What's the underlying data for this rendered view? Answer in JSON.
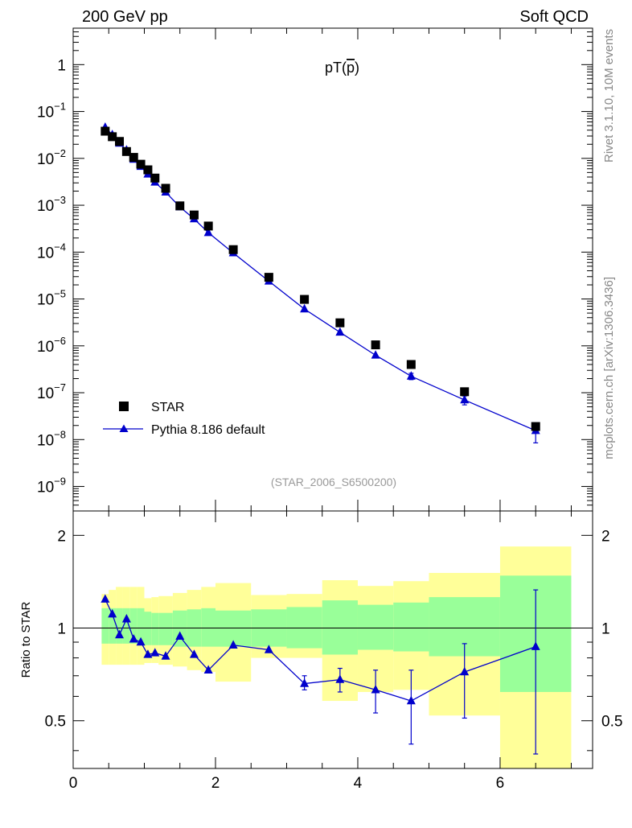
{
  "header": {
    "left_title": "200 GeV pp",
    "right_title": "Soft QCD"
  },
  "side_text": {
    "rivet": "Rivet 3.1.10,  10M events",
    "mcplots": "mcplots.cern.ch [arXiv:1306.3436]"
  },
  "colors": {
    "data": "#000000",
    "mc": "#0000cc",
    "band_inner": "#99ff99",
    "band_outer": "#ffff99",
    "analysis_label": "#999999"
  },
  "chart_data": [
    {
      "type": "scatter",
      "panel": "main",
      "title": "pT(p̄)",
      "title_base": "pT(",
      "title_sym": "p",
      "title_close": ")",
      "analysis_label": "(STAR_2006_S6500200)",
      "yscale": "log",
      "xlim": [
        0,
        7.3
      ],
      "ylim": [
        3e-10,
        6
      ],
      "ytick_labels": [
        {
          "value": 1,
          "mant": "1",
          "exp": ""
        },
        {
          "value": 0.1,
          "mant": "10",
          "exp": "−1"
        },
        {
          "value": 0.01,
          "mant": "10",
          "exp": "−2"
        },
        {
          "value": 0.001,
          "mant": "10",
          "exp": "−3"
        },
        {
          "value": 0.0001,
          "mant": "10",
          "exp": "−4"
        },
        {
          "value": 1e-05,
          "mant": "10",
          "exp": "−5"
        },
        {
          "value": 1e-06,
          "mant": "10",
          "exp": "−6"
        },
        {
          "value": 1e-07,
          "mant": "10",
          "exp": "−7"
        },
        {
          "value": 1e-08,
          "mant": "10",
          "exp": "−8"
        },
        {
          "value": 1e-09,
          "mant": "10",
          "exp": "−9"
        }
      ],
      "legend": {
        "placement": "bottom-left",
        "entries": [
          "STAR",
          "Pythia 8.186 default"
        ]
      },
      "series": [
        {
          "name": "STAR",
          "marker": "square",
          "x": [
            0.45,
            0.55,
            0.65,
            0.75,
            0.85,
            0.95,
            1.05,
            1.15,
            1.3,
            1.5,
            1.7,
            1.9,
            2.25,
            2.75,
            3.25,
            3.75,
            4.25,
            4.75,
            5.5,
            6.5
          ],
          "y": [
            0.038,
            0.029,
            0.023,
            0.014,
            0.0105,
            0.0075,
            0.0057,
            0.0038,
            0.0023,
            0.00097,
            0.00062,
            0.00036,
            0.000113,
            2.9e-05,
            9.8e-06,
            3.1e-06,
            1.05e-06,
            4e-07,
            1.05e-07,
            1.9e-08
          ]
        },
        {
          "name": "Pythia 8.186 default",
          "marker": "triangle",
          "x": [
            0.45,
            0.55,
            0.65,
            0.75,
            0.85,
            0.95,
            1.05,
            1.15,
            1.3,
            1.5,
            1.7,
            1.9,
            2.25,
            2.75,
            3.25,
            3.75,
            4.25,
            4.75,
            5.5,
            6.5
          ],
          "y": [
            0.046,
            0.032,
            0.021,
            0.015,
            0.0095,
            0.0067,
            0.0046,
            0.0031,
            0.0019,
            0.00092,
            0.00051,
            0.00026,
            9.6e-05,
            2.4e-05,
            6.1e-06,
            1.95e-06,
            6.3e-07,
            2.25e-07,
            7e-08,
            1.55e-08
          ],
          "yerr": [
            0,
            0,
            0,
            0,
            0,
            0,
            0,
            0,
            0,
            0,
            0,
            0,
            0,
            0,
            0,
            0,
            0,
            3.5e-08,
            1.5e-08,
            7e-09
          ]
        }
      ]
    },
    {
      "type": "scatter",
      "panel": "ratio",
      "ylabel": "Ratio to STAR",
      "xlim": [
        0,
        7.3
      ],
      "ylim": [
        0.35,
        2.4
      ],
      "xticks": [
        0,
        2,
        4,
        6
      ],
      "xtick_labels": [
        "0",
        "2",
        "4",
        "6"
      ],
      "yticks": [
        0.5,
        1,
        2
      ],
      "ytick_labels": [
        "0.5",
        "1",
        "2"
      ],
      "bands": [
        {
          "x0": 0.4,
          "x1": 0.5,
          "inner": [
            0.89,
            1.16
          ],
          "outer": [
            0.76,
            1.29
          ]
        },
        {
          "x0": 0.5,
          "x1": 0.6,
          "inner": [
            0.89,
            1.16
          ],
          "outer": [
            0.76,
            1.33
          ]
        },
        {
          "x0": 0.6,
          "x1": 0.7,
          "inner": [
            0.89,
            1.16
          ],
          "outer": [
            0.76,
            1.36
          ]
        },
        {
          "x0": 0.7,
          "x1": 0.8,
          "inner": [
            0.89,
            1.16
          ],
          "outer": [
            0.76,
            1.36
          ]
        },
        {
          "x0": 0.8,
          "x1": 0.9,
          "inner": [
            0.89,
            1.16
          ],
          "outer": [
            0.76,
            1.36
          ]
        },
        {
          "x0": 0.9,
          "x1": 1.0,
          "inner": [
            0.89,
            1.16
          ],
          "outer": [
            0.76,
            1.36
          ]
        },
        {
          "x0": 1.0,
          "x1": 1.1,
          "inner": [
            0.88,
            1.13
          ],
          "outer": [
            0.77,
            1.25
          ]
        },
        {
          "x0": 1.1,
          "x1": 1.2,
          "inner": [
            0.88,
            1.12
          ],
          "outer": [
            0.77,
            1.26
          ]
        },
        {
          "x0": 1.2,
          "x1": 1.4,
          "inner": [
            0.88,
            1.12
          ],
          "outer": [
            0.76,
            1.27
          ]
        },
        {
          "x0": 1.4,
          "x1": 1.6,
          "inner": [
            0.87,
            1.14
          ],
          "outer": [
            0.75,
            1.3
          ]
        },
        {
          "x0": 1.6,
          "x1": 1.8,
          "inner": [
            0.87,
            1.15
          ],
          "outer": [
            0.73,
            1.33
          ]
        },
        {
          "x0": 1.8,
          "x1": 2.0,
          "inner": [
            0.87,
            1.16
          ],
          "outer": [
            0.72,
            1.36
          ]
        },
        {
          "x0": 2.0,
          "x1": 2.5,
          "inner": [
            0.87,
            1.14
          ],
          "outer": [
            0.67,
            1.4
          ]
        },
        {
          "x0": 2.5,
          "x1": 3.0,
          "inner": [
            0.87,
            1.15
          ],
          "outer": [
            0.8,
            1.28
          ]
        },
        {
          "x0": 3.0,
          "x1": 3.5,
          "inner": [
            0.86,
            1.17
          ],
          "outer": [
            0.8,
            1.29
          ]
        },
        {
          "x0": 3.5,
          "x1": 4.0,
          "inner": [
            0.82,
            1.23
          ],
          "outer": [
            0.58,
            1.43
          ]
        },
        {
          "x0": 4.0,
          "x1": 4.5,
          "inner": [
            0.85,
            1.19
          ],
          "outer": [
            0.62,
            1.37
          ]
        },
        {
          "x0": 4.5,
          "x1": 5.0,
          "inner": [
            0.84,
            1.21
          ],
          "outer": [
            0.63,
            1.42
          ]
        },
        {
          "x0": 5.0,
          "x1": 6.0,
          "inner": [
            0.81,
            1.26
          ],
          "outer": [
            0.52,
            1.51
          ]
        },
        {
          "x0": 6.0,
          "x1": 7.0,
          "inner": [
            0.62,
            1.48
          ],
          "outer": [
            0.35,
            1.84
          ]
        }
      ],
      "series": [
        {
          "name": "Pythia 8.186 default / STAR",
          "marker": "triangle",
          "x": [
            0.45,
            0.55,
            0.65,
            0.75,
            0.85,
            0.95,
            1.05,
            1.15,
            1.3,
            1.5,
            1.7,
            1.9,
            2.25,
            2.75,
            3.25,
            3.75,
            4.25,
            4.75,
            5.5,
            6.5
          ],
          "y": [
            1.24,
            1.11,
            0.95,
            1.07,
            0.92,
            0.9,
            0.82,
            0.83,
            0.81,
            0.94,
            0.82,
            0.73,
            0.88,
            0.85,
            0.66,
            0.68,
            0.63,
            0.58,
            0.72,
            0.87
          ],
          "yerr_low": [
            0,
            0,
            0,
            0,
            0,
            0,
            0,
            0,
            0,
            0,
            0,
            0,
            0,
            0,
            0.03,
            0.06,
            0.1,
            0.16,
            0.21,
            0.48
          ],
          "yerr_high": [
            0,
            0,
            0,
            0,
            0,
            0,
            0,
            0,
            0,
            0,
            0,
            0,
            0,
            0,
            0.04,
            0.06,
            0.1,
            0.15,
            0.17,
            0.46
          ]
        }
      ]
    }
  ]
}
